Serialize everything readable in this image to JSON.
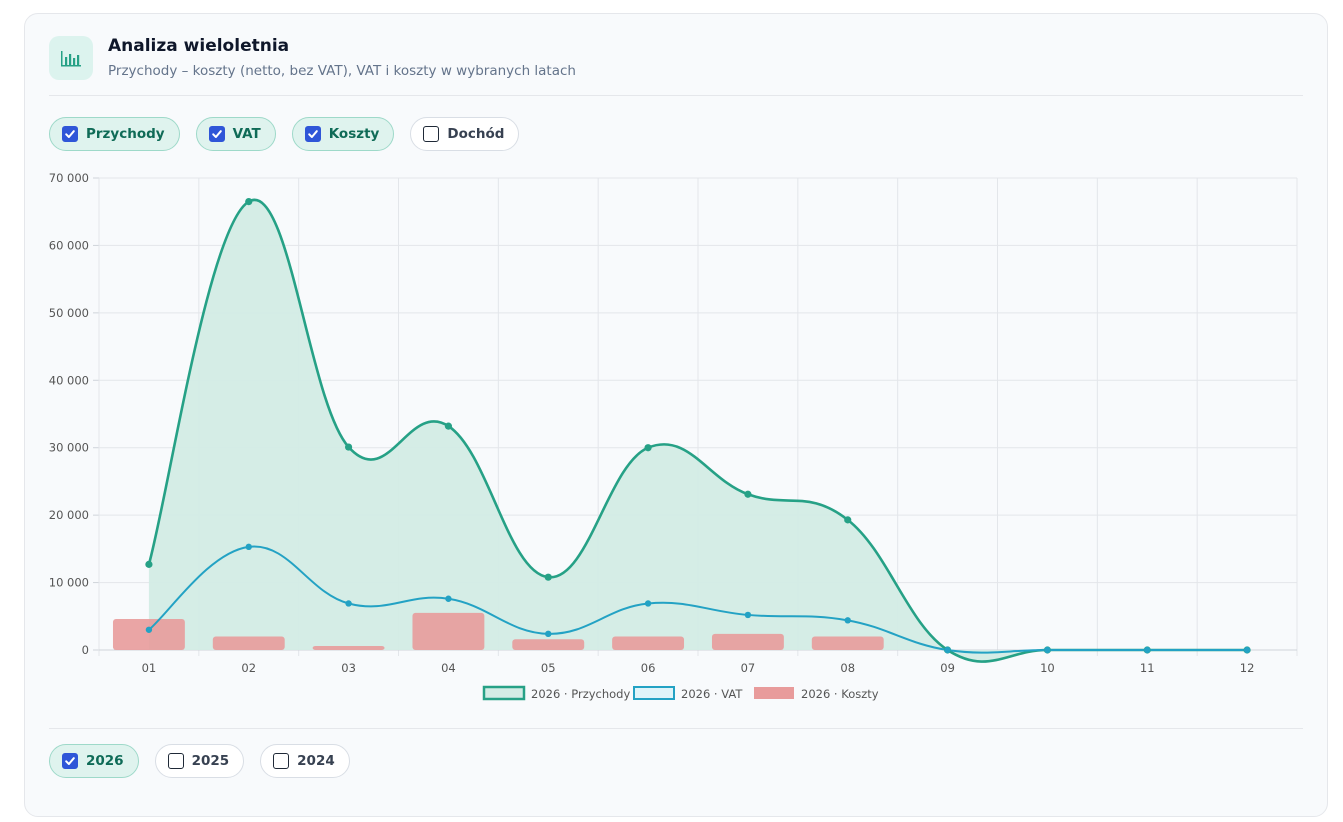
{
  "header": {
    "title": "Analiza wieloletnia",
    "subtitle": "Przychody – koszty (netto, bez VAT), VAT i koszty w wybranych latach",
    "icon": "bar-chart-icon"
  },
  "series_toggles": [
    {
      "label": "Przychody",
      "checked": true
    },
    {
      "label": "VAT",
      "checked": true
    },
    {
      "label": "Koszty",
      "checked": true
    },
    {
      "label": "Dochód",
      "checked": false
    }
  ],
  "year_toggles": [
    {
      "label": "2026",
      "checked": true
    },
    {
      "label": "2025",
      "checked": false
    },
    {
      "label": "2024",
      "checked": false
    }
  ],
  "colors": {
    "przychody": "#26a186",
    "przychody_fill": "#d3ece5",
    "vat": "#23a2c4",
    "koszty": "#e89b9b"
  },
  "chart_data": {
    "type": "line",
    "categories": [
      "01",
      "02",
      "03",
      "04",
      "05",
      "06",
      "07",
      "08",
      "09",
      "10",
      "11",
      "12"
    ],
    "series": [
      {
        "name": "2026 · Przychody",
        "type": "area",
        "values": [
          12700,
          66500,
          30100,
          33200,
          10800,
          30000,
          23100,
          19300,
          0,
          0,
          0,
          0
        ]
      },
      {
        "name": "2026 · VAT",
        "type": "line",
        "values": [
          3000,
          15300,
          6900,
          7600,
          2400,
          6900,
          5200,
          4400,
          0,
          0,
          0,
          0
        ]
      },
      {
        "name": "2026 · Koszty",
        "type": "bar",
        "values": [
          4600,
          2000,
          600,
          5500,
          1600,
          2000,
          2400,
          2000,
          0,
          0,
          0,
          0
        ]
      }
    ],
    "yticks": [
      "0",
      "10 000",
      "20 000",
      "30 000",
      "40 000",
      "50 000",
      "60 000",
      "70 000"
    ],
    "ylim": [
      0,
      70000
    ],
    "grid": true,
    "legend": "bottom"
  }
}
